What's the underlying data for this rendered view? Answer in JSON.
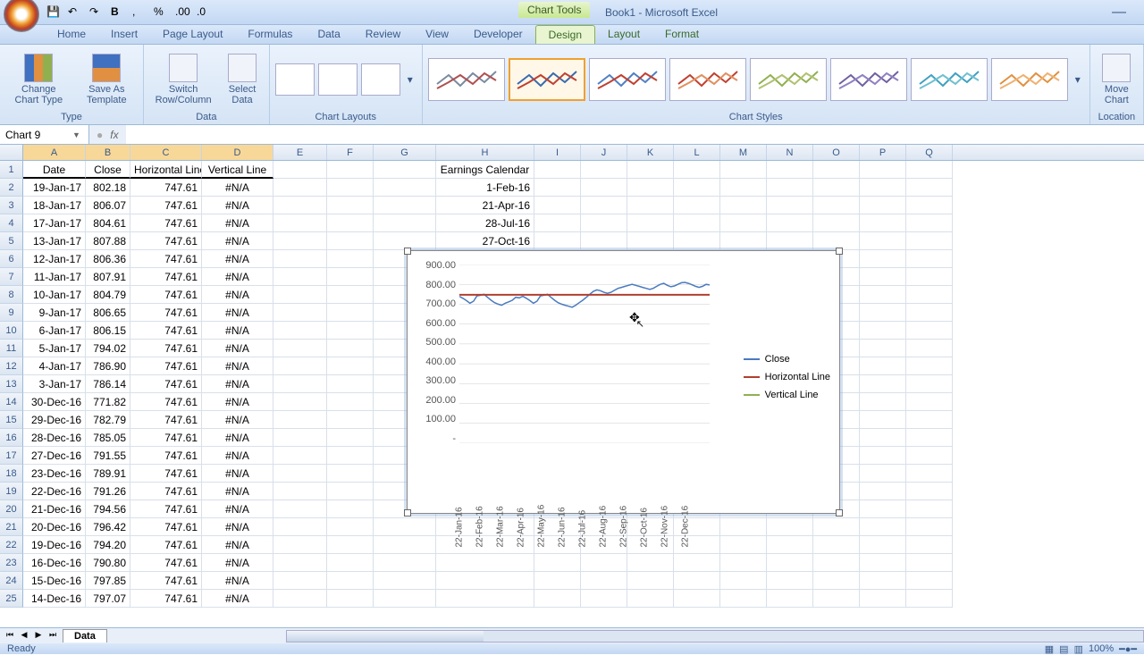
{
  "app": {
    "title": "Book1 - Microsoft Excel",
    "chart_tools_label": "Chart Tools",
    "minimize": "—"
  },
  "qat": {
    "save": "💾",
    "undo": "↶",
    "redo": "↷",
    "bold": "B",
    "comma": ",",
    "percent": "%",
    "inc_dec": ".00",
    "dec_dec": ".0"
  },
  "tabs": {
    "items": [
      "Home",
      "Insert",
      "Page Layout",
      "Formulas",
      "Data",
      "Review",
      "View",
      "Developer"
    ],
    "context_items": [
      "Design",
      "Layout",
      "Format"
    ],
    "active": "Design"
  },
  "ribbon": {
    "type_group": "Type",
    "change_type": "Change Chart Type",
    "save_template": "Save As Template",
    "data_group": "Data",
    "switch": "Switch Row/Column",
    "select_data": "Select Data",
    "layouts_group": "Chart Layouts",
    "styles_group": "Chart Styles",
    "location_group": "Location",
    "move_chart": "Move Chart",
    "style_colors": [
      [
        "#7a8aa0",
        "#b05050"
      ],
      [
        "#3a6ab0",
        "#c04030"
      ],
      [
        "#5080c0",
        "#c04030"
      ],
      [
        "#c04030",
        "#e09060"
      ],
      [
        "#90b050",
        "#b0c070"
      ],
      [
        "#7060a0",
        "#9080c0"
      ],
      [
        "#40a0c0",
        "#70c0d0"
      ],
      [
        "#e09040",
        "#f0b070"
      ]
    ],
    "selected_style_index": 1
  },
  "namebox": {
    "value": "Chart 9",
    "fx": "fx"
  },
  "columns": {
    "letters": [
      "A",
      "B",
      "C",
      "D",
      "E",
      "F",
      "G",
      "H",
      "I",
      "J",
      "K",
      "L",
      "M",
      "N",
      "O",
      "P",
      "Q"
    ],
    "widths": [
      70,
      50,
      80,
      80,
      60,
      52,
      70,
      110,
      52,
      52,
      52,
      52,
      52,
      52,
      52,
      52,
      52
    ],
    "selected": [
      0,
      1,
      2,
      3
    ]
  },
  "headers": {
    "A": "Date",
    "B": "Close",
    "C": "Horizontal Line",
    "D": "Vertical Line",
    "H": "Earnings Calendar"
  },
  "data_rows": [
    {
      "A": "19-Jan-17",
      "B": "802.18",
      "C": "747.61",
      "D": "#N/A",
      "H": "1-Feb-16"
    },
    {
      "A": "18-Jan-17",
      "B": "806.07",
      "C": "747.61",
      "D": "#N/A",
      "H": "21-Apr-16"
    },
    {
      "A": "17-Jan-17",
      "B": "804.61",
      "C": "747.61",
      "D": "#N/A",
      "H": "28-Jul-16"
    },
    {
      "A": "13-Jan-17",
      "B": "807.88",
      "C": "747.61",
      "D": "#N/A",
      "H": "27-Oct-16"
    },
    {
      "A": "12-Jan-17",
      "B": "806.36",
      "C": "747.61",
      "D": "#N/A"
    },
    {
      "A": "11-Jan-17",
      "B": "807.91",
      "C": "747.61",
      "D": "#N/A"
    },
    {
      "A": "10-Jan-17",
      "B": "804.79",
      "C": "747.61",
      "D": "#N/A"
    },
    {
      "A": "9-Jan-17",
      "B": "806.65",
      "C": "747.61",
      "D": "#N/A"
    },
    {
      "A": "6-Jan-17",
      "B": "806.15",
      "C": "747.61",
      "D": "#N/A"
    },
    {
      "A": "5-Jan-17",
      "B": "794.02",
      "C": "747.61",
      "D": "#N/A"
    },
    {
      "A": "4-Jan-17",
      "B": "786.90",
      "C": "747.61",
      "D": "#N/A"
    },
    {
      "A": "3-Jan-17",
      "B": "786.14",
      "C": "747.61",
      "D": "#N/A"
    },
    {
      "A": "30-Dec-16",
      "B": "771.82",
      "C": "747.61",
      "D": "#N/A"
    },
    {
      "A": "29-Dec-16",
      "B": "782.79",
      "C": "747.61",
      "D": "#N/A"
    },
    {
      "A": "28-Dec-16",
      "B": "785.05",
      "C": "747.61",
      "D": "#N/A"
    },
    {
      "A": "27-Dec-16",
      "B": "791.55",
      "C": "747.61",
      "D": "#N/A"
    },
    {
      "A": "23-Dec-16",
      "B": "789.91",
      "C": "747.61",
      "D": "#N/A"
    },
    {
      "A": "22-Dec-16",
      "B": "791.26",
      "C": "747.61",
      "D": "#N/A"
    },
    {
      "A": "21-Dec-16",
      "B": "794.56",
      "C": "747.61",
      "D": "#N/A"
    },
    {
      "A": "20-Dec-16",
      "B": "796.42",
      "C": "747.61",
      "D": "#N/A"
    },
    {
      "A": "19-Dec-16",
      "B": "794.20",
      "C": "747.61",
      "D": "#N/A"
    },
    {
      "A": "16-Dec-16",
      "B": "790.80",
      "C": "747.61",
      "D": "#N/A"
    },
    {
      "A": "15-Dec-16",
      "B": "797.85",
      "C": "747.61",
      "D": "#N/A"
    },
    {
      "A": "14-Dec-16",
      "B": "797.07",
      "C": "747.61",
      "D": "#N/A"
    }
  ],
  "chart": {
    "type": "line",
    "y_labels": [
      "900.00",
      "800.00",
      "700.00",
      "600.00",
      "500.00",
      "400.00",
      "300.00",
      "200.00",
      "100.00",
      "-"
    ],
    "x_labels": [
      "22-Jan-16",
      "22-Feb-16",
      "22-Mar-16",
      "22-Apr-16",
      "22-May-16",
      "22-Jun-16",
      "22-Jul-16",
      "22-Aug-16",
      "22-Sep-16",
      "22-Oct-16",
      "22-Nov-16",
      "22-Dec-16"
    ],
    "ylim": [
      0,
      900
    ],
    "close_color": "#4a7ac0",
    "horiz_color": "#b04030",
    "vert_color": "#90b050",
    "legend": [
      "Close",
      "Horizontal Line",
      "Vertical Line"
    ],
    "close_points": [
      740,
      730,
      718,
      705,
      715,
      742,
      745,
      750,
      735,
      720,
      708,
      700,
      695,
      705,
      712,
      720,
      735,
      732,
      740,
      730,
      718,
      705,
      715,
      742,
      745,
      750,
      735,
      720,
      708,
      700,
      695,
      690,
      685,
      695,
      708,
      720,
      735,
      750,
      765,
      772,
      768,
      760,
      755,
      760,
      770,
      780,
      785,
      790,
      795,
      800,
      795,
      790,
      785,
      780,
      775,
      780,
      790,
      800,
      805,
      795,
      788,
      792,
      800,
      808,
      810,
      805,
      798,
      790,
      785,
      790,
      800,
      797
    ],
    "horiz_value": 747.61,
    "plot_background": "#ffffff",
    "grid_color": "#cccccc"
  },
  "sheets": {
    "nav": [
      "⏮",
      "◀",
      "▶",
      "⏭"
    ],
    "active": "Data"
  },
  "status": {
    "ready": "Ready",
    "zoom": "100%"
  }
}
